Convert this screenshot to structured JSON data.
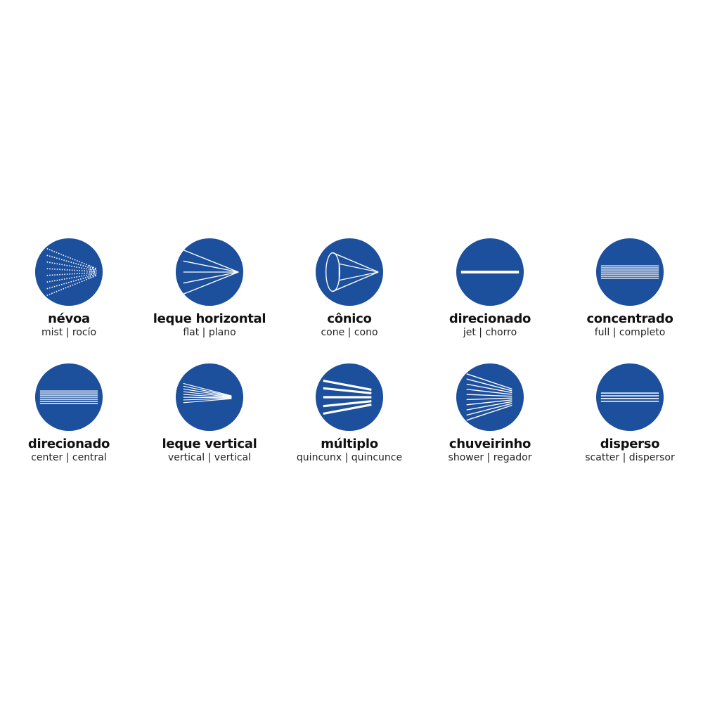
{
  "colors": {
    "circle": "#1c4f9c",
    "stroke": "#ffffff",
    "text": "#111111"
  },
  "rows": [
    [
      {
        "title": "névoa",
        "subtitle": "mist | rocío",
        "icon": "mist-icon"
      },
      {
        "title": "leque horizontal",
        "subtitle": "flat | plano",
        "icon": "flat-fan-icon"
      },
      {
        "title": "cônico",
        "subtitle": "cone | cono",
        "icon": "cone-icon"
      },
      {
        "title": "direcionado",
        "subtitle": "jet | chorro",
        "icon": "jet-icon"
      },
      {
        "title": "concentrado",
        "subtitle": "full | completo",
        "icon": "full-icon"
      }
    ],
    [
      {
        "title": "direcionado",
        "subtitle": "center | central",
        "icon": "center-icon"
      },
      {
        "title": "leque vertical",
        "subtitle": "vertical | vertical",
        "icon": "vertical-fan-icon"
      },
      {
        "title": "múltiplo",
        "subtitle": "quincunx | quincunce",
        "icon": "quincunx-icon"
      },
      {
        "title": "chuveirinho",
        "subtitle": "shower | regador",
        "icon": "shower-icon"
      },
      {
        "title": "disperso",
        "subtitle": "scatter | dispersor",
        "icon": "scatter-icon"
      }
    ]
  ]
}
